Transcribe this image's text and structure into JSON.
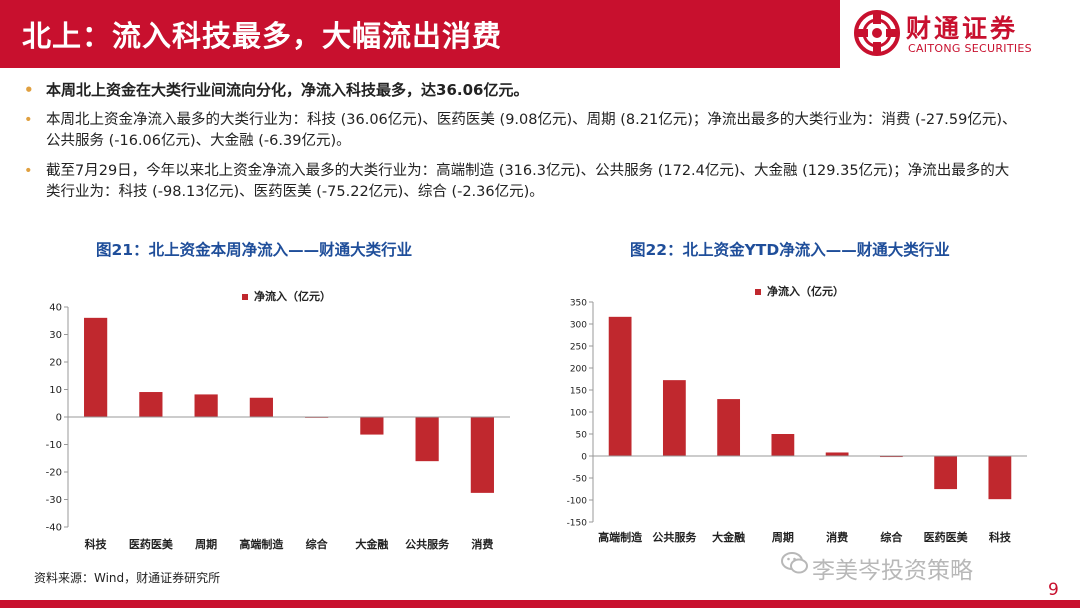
{
  "header": {
    "title": "北上：流入科技最多，大幅流出消费",
    "logo_cn": "财通证券",
    "logo_en": "CAITONG SECURITIES"
  },
  "bullets": [
    "本周北上资金在大类行业间流向分化，净流入科技最多，达36.06亿元。",
    "本周北上资金净流入最多的大类行业为：科技 (36.06亿元)、医药医美 (9.08亿元)、周期 (8.21亿元)；净流出最多的大类行业为：消费 (-27.59亿元)、公共服务 (-16.06亿元)、大金融 (-6.39亿元)。",
    "截至7月29日，今年以来北上资金净流入最多的大类行业为：高端制造 (316.3亿元)、公共服务 (172.4亿元)、大金融 (129.35亿元)；净流出最多的大类行业为：科技 (-98.13亿元)、医药医美 (-75.22亿元)、综合 (-2.36亿元)。"
  ],
  "footer": {
    "source": "资料来源：Wind，财通证券研究所",
    "watermark": "李美岑投资策略",
    "page": "9"
  },
  "colors": {
    "brand": "#c8102e",
    "bar": "#c0282e",
    "chart_title": "#1f4e9a"
  },
  "chart_data": [
    {
      "type": "bar",
      "title": "图21：北上资金本周净流入——财通大类行业",
      "legend": "净流入（亿元）",
      "legend_position": "top",
      "categories": [
        "科技",
        "医药医美",
        "周期",
        "高端制造",
        "综合",
        "大金融",
        "公共服务",
        "消费"
      ],
      "values": [
        36.06,
        9.08,
        8.21,
        7.0,
        -0.3,
        -6.39,
        -16.06,
        -27.59
      ],
      "ylim": [
        -40,
        40
      ],
      "yticks": [
        40,
        30,
        20,
        10,
        0,
        -10,
        -20,
        -30,
        -40
      ],
      "grid": false
    },
    {
      "type": "bar",
      "title": "图22：北上资金YTD净流入——财通大类行业",
      "legend": "净流入（亿元）",
      "legend_position": "top",
      "categories": [
        "高端制造",
        "公共服务",
        "大金融",
        "周期",
        "消费",
        "综合",
        "医药医美",
        "科技"
      ],
      "values": [
        316.3,
        172.4,
        129.35,
        50,
        8,
        -2.36,
        -75.22,
        -98.13
      ],
      "ylim": [
        -150,
        350
      ],
      "yticks": [
        350,
        300,
        250,
        200,
        150,
        100,
        50,
        0,
        -50,
        -100,
        -150
      ],
      "grid": false
    }
  ]
}
